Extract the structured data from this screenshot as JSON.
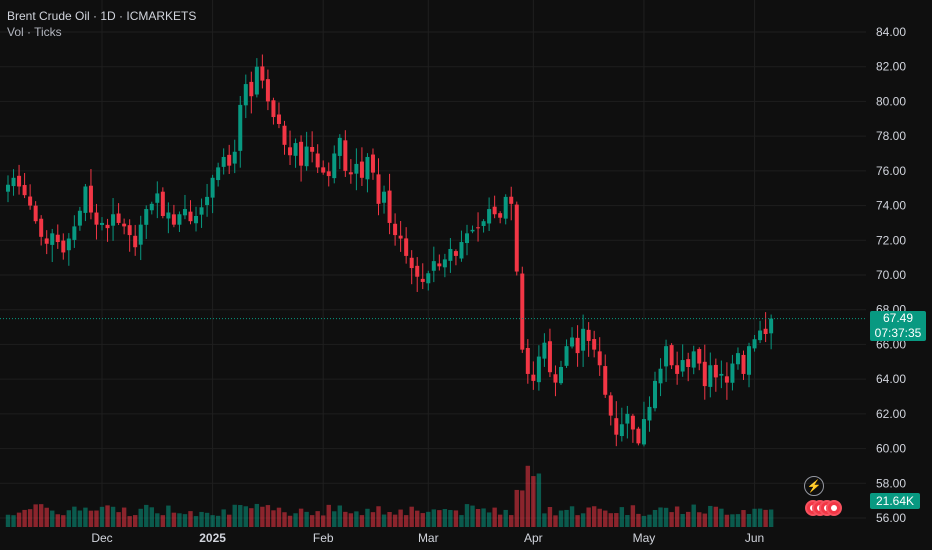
{
  "legend": {
    "symbol_line": "Brent Crude Oil · 1D · ICMARKETS",
    "volume_line": "Vol · Ticks"
  },
  "price_label": {
    "price": "67.49",
    "countdown": "07:37:35"
  },
  "volume_label": "21.64K",
  "icons": {
    "flash": "lightning-icon",
    "events": "us-flag-event-icons"
  },
  "colors": {
    "up": "#089981",
    "down": "#f23645",
    "background": "#0f0f0f",
    "grid": "#1f1f1f"
  },
  "chart_data": {
    "type": "candlestick",
    "y_axis": {
      "ticks": [
        "84.00",
        "82.00",
        "80.00",
        "78.00",
        "76.00",
        "74.00",
        "72.00",
        "70.00",
        "68.00",
        "66.00",
        "64.00",
        "62.00",
        "60.00",
        "58.00",
        "56.00"
      ],
      "ylim": [
        55.5,
        85.0
      ]
    },
    "x_axis": {
      "ticks": [
        {
          "label": "Dec",
          "bold": false,
          "index": 17
        },
        {
          "label": "2025",
          "bold": true,
          "index": 37
        },
        {
          "label": "Feb",
          "bold": false,
          "index": 57
        },
        {
          "label": "Mar",
          "bold": false,
          "index": 76
        },
        {
          "label": "Apr",
          "bold": false,
          "index": 95
        },
        {
          "label": "May",
          "bold": false,
          "index": 115
        },
        {
          "label": "Jun",
          "bold": false,
          "index": 135
        }
      ]
    },
    "grid": true,
    "last_price": 67.49,
    "closes": [
      75.2,
      75.6,
      75.1,
      74.6,
      74.0,
      73.1,
      72.2,
      71.8,
      72.4,
      71.9,
      71.3,
      72.1,
      72.8,
      73.7,
      75.1,
      73.6,
      72.9,
      73.0,
      72.7,
      73.5,
      73.0,
      72.8,
      72.3,
      71.6,
      72.9,
      73.8,
      74.1,
      74.7,
      73.4,
      73.6,
      72.9,
      73.5,
      73.8,
      73.1,
      73.4,
      73.9,
      74.5,
      75.6,
      76.2,
      76.8,
      76.3,
      77.1,
      79.8,
      81.0,
      80.3,
      82.0,
      81.2,
      80.0,
      79.1,
      78.7,
      77.5,
      76.9,
      77.6,
      76.3,
      77.4,
      77.1,
      76.2,
      75.9,
      75.7,
      77.0,
      77.9,
      76.0,
      75.8,
      76.4,
      75.6,
      76.8,
      75.9,
      74.1,
      74.8,
      73.0,
      72.3,
      72.1,
      71.1,
      70.4,
      69.9,
      69.6,
      70.1,
      70.8,
      70.5,
      70.9,
      71.5,
      71.1,
      71.9,
      72.4,
      72.6,
      72.7,
      73.1,
      73.8,
      73.5,
      73.3,
      74.5,
      74.1,
      70.2,
      65.7,
      64.3,
      63.9,
      65.3,
      66.1,
      64.4,
      63.8,
      64.7,
      65.9,
      66.4,
      65.5,
      66.9,
      66.2,
      65.7,
      64.8,
      63.1,
      61.9,
      60.8,
      61.4,
      62.0,
      61.1,
      60.3,
      61.7,
      62.4,
      63.9,
      64.6,
      65.9,
      64.8,
      64.3,
      65.1,
      64.7,
      65.6,
      64.9,
      63.6,
      64.8,
      64.1,
      64.3,
      63.8,
      64.9,
      65.5,
      64.3,
      65.9,
      66.3,
      66.8,
      66.6,
      67.49
    ],
    "volume_ylim": [
      0,
      40
    ]
  }
}
